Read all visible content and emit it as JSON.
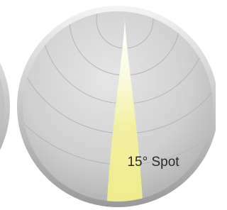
{
  "label": "15° Spot"
}
